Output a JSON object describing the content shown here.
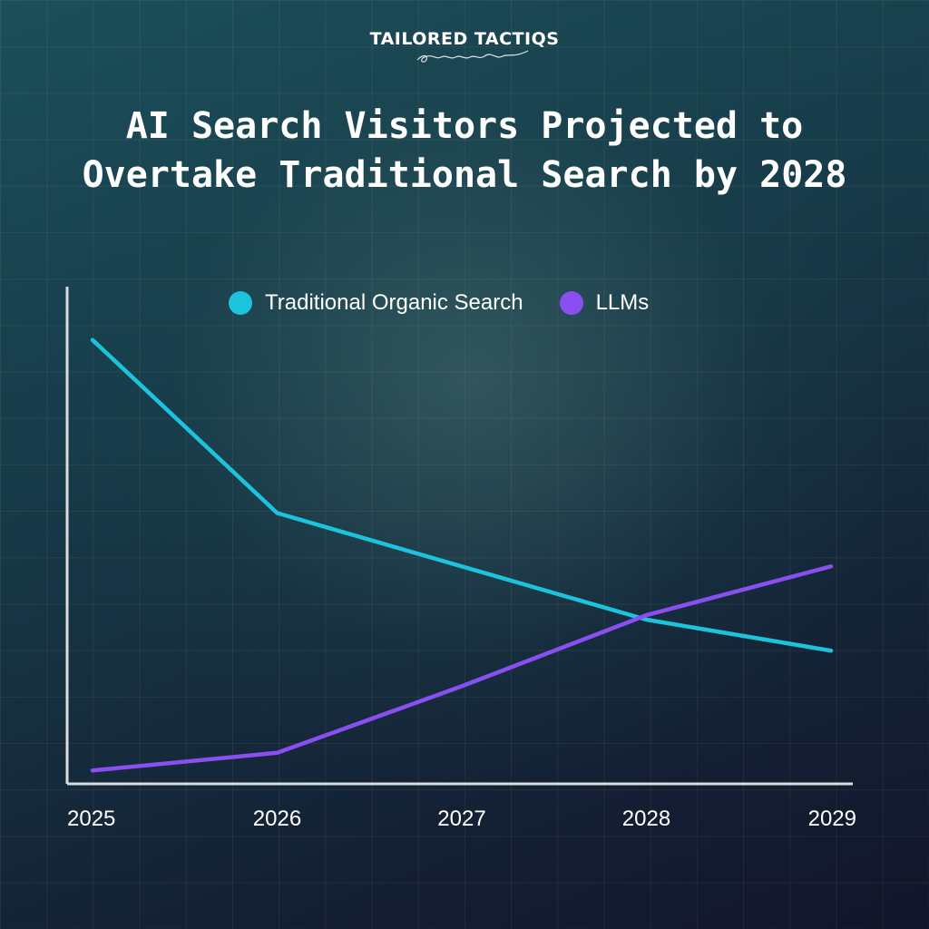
{
  "brand": {
    "name": "TAILORED TACTIQS"
  },
  "title": {
    "line1": "AI Search Visitors Projected to",
    "line2": "Overtake Traditional Search by 2028"
  },
  "colors": {
    "traditional": "#1cc3dd",
    "llms": "#8a4ff0",
    "axis": "#d9dde0"
  },
  "chart_data": {
    "type": "line",
    "x": [
      "2025",
      "2026",
      "2027",
      "2028",
      "2029"
    ],
    "series": [
      {
        "name": "Traditional Organic Search",
        "values": [
          100,
          61,
          49,
          37,
          30
        ]
      },
      {
        "name": "LLMs",
        "values": [
          3,
          7,
          22,
          38,
          49
        ]
      }
    ],
    "ylim": [
      0,
      112
    ],
    "legend": "top-center",
    "grid": false,
    "xlabel": "",
    "ylabel": ""
  }
}
